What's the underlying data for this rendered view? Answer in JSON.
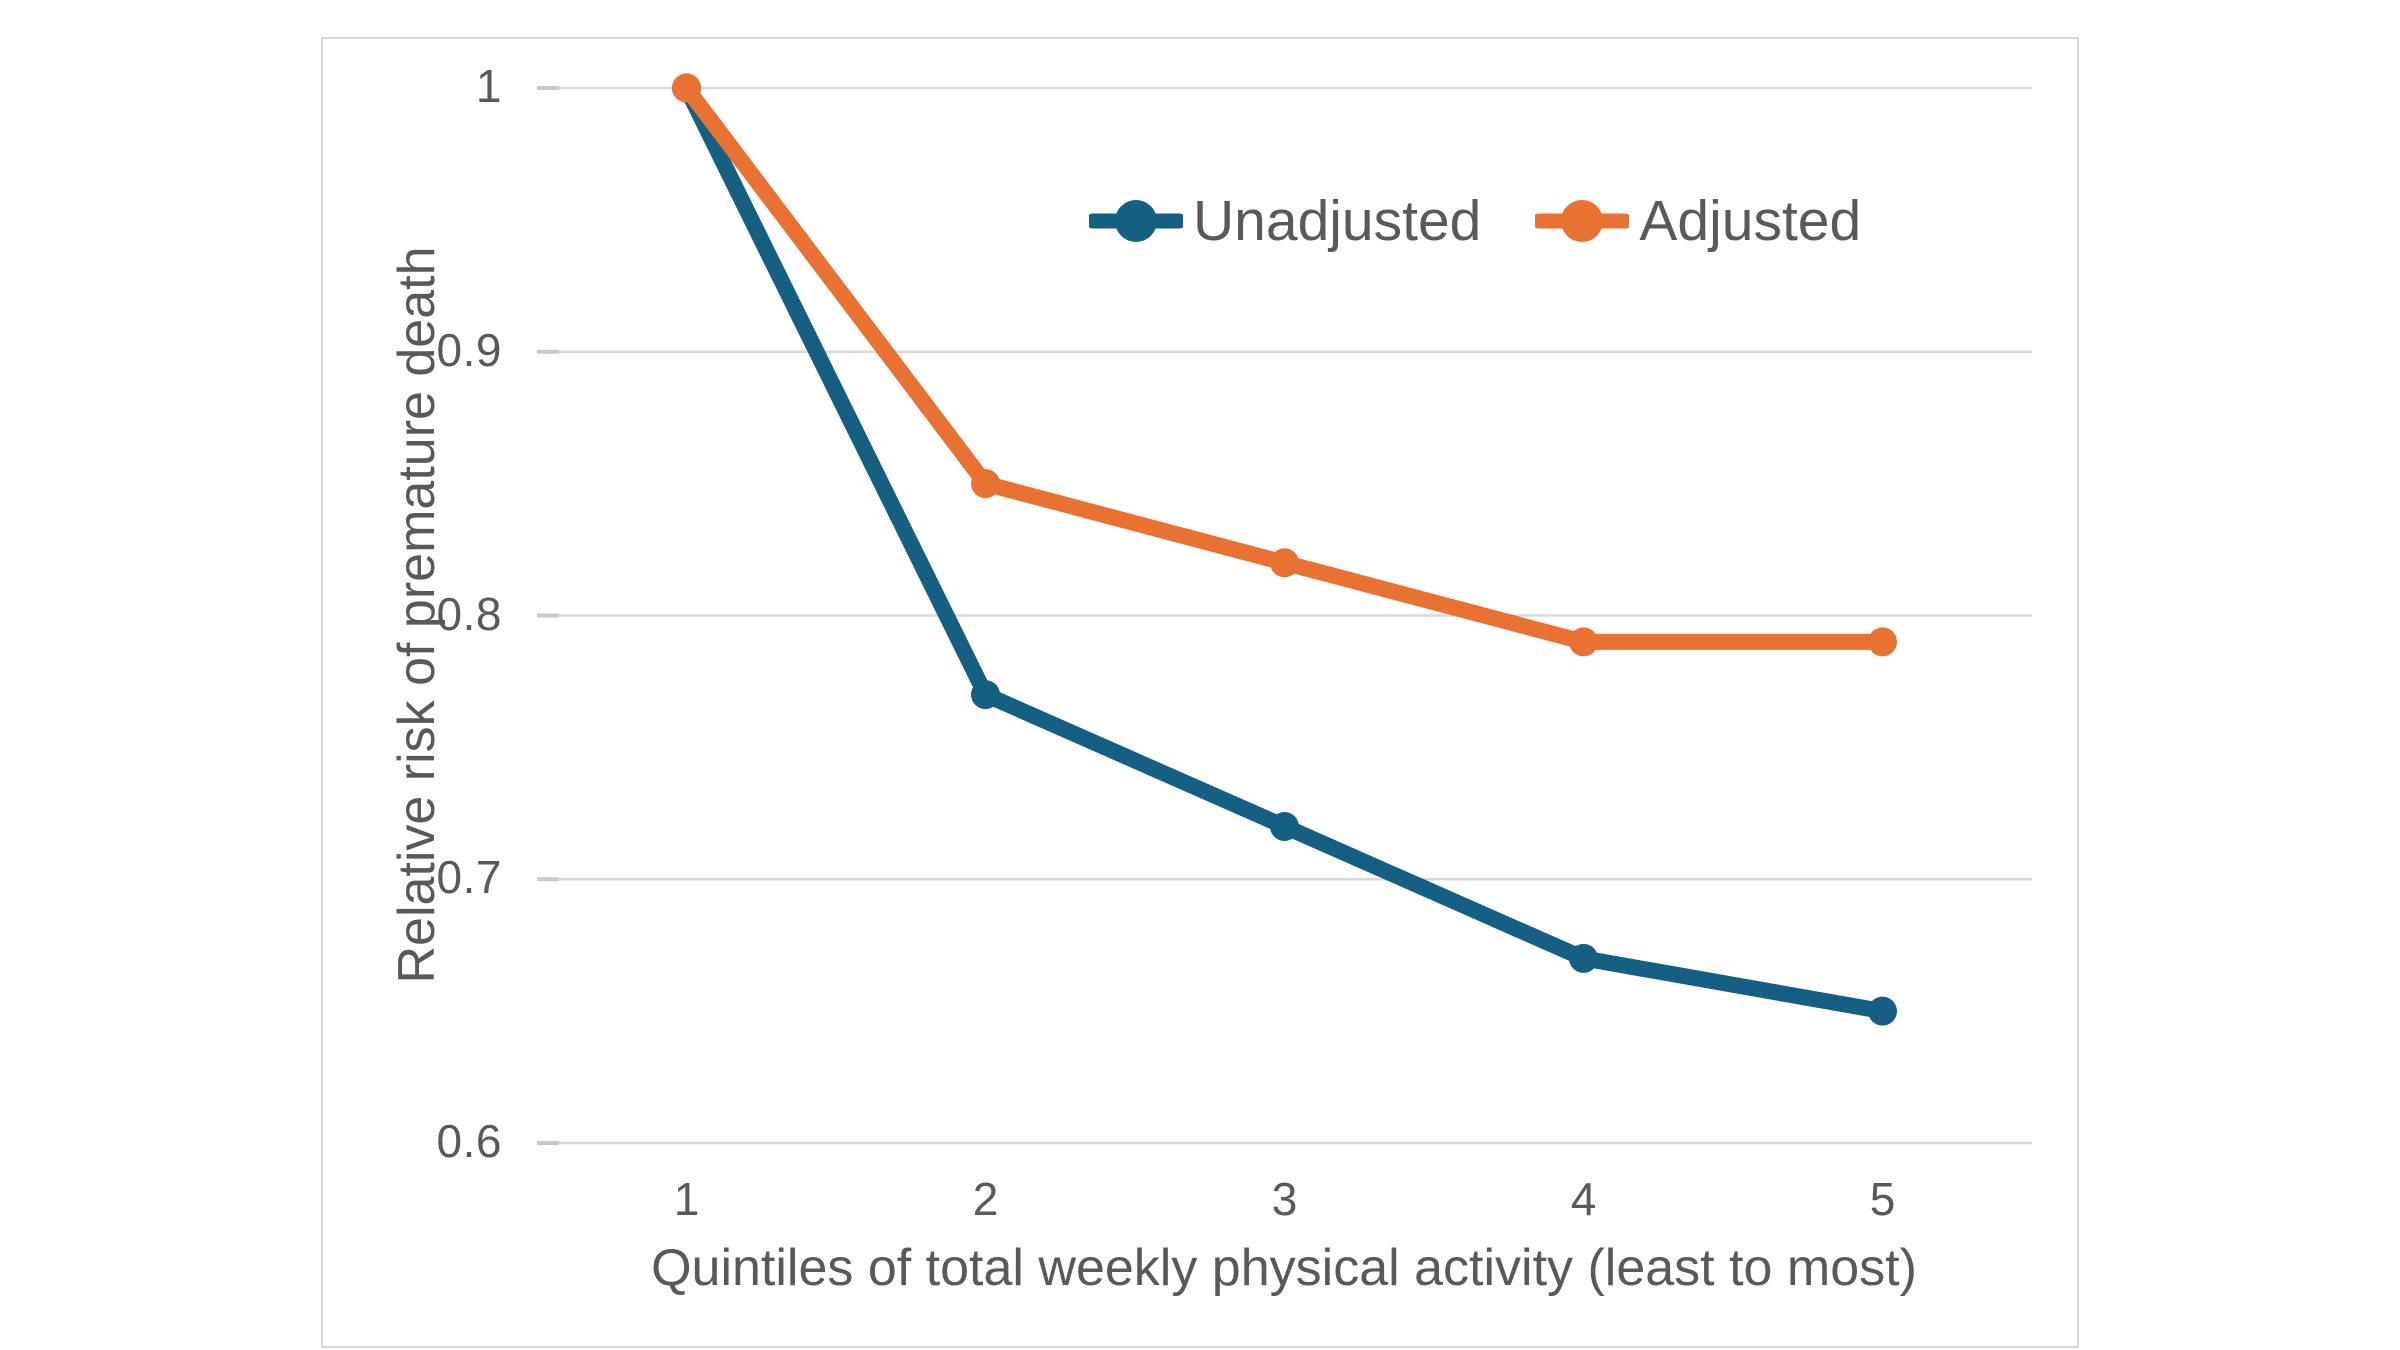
{
  "chart_data": {
    "type": "line",
    "title": "",
    "xlabel": "Quintiles of total weekly physical activity (least to most)",
    "ylabel": "Relative risk of premature death",
    "categories": [
      "1",
      "2",
      "3",
      "4",
      "5"
    ],
    "series": [
      {
        "name": "Unadjusted",
        "color": "#156082",
        "values": [
          1.0,
          0.77,
          0.72,
          0.67,
          0.65
        ]
      },
      {
        "name": "Adjusted",
        "color": "#E97132",
        "values": [
          1.0,
          0.85,
          0.82,
          0.79,
          0.79
        ]
      }
    ],
    "ylim": [
      0.6,
      1.0
    ],
    "yticks": [
      1,
      0.9,
      0.8,
      0.7,
      0.6
    ],
    "ytick_labels": [
      "1",
      "0.9",
      "0.8",
      "0.7",
      "0.6"
    ],
    "grid": true,
    "legend_position": "inside-top-right",
    "legend": [
      "Unadjusted",
      "Adjusted"
    ]
  },
  "colors": {
    "text": "#595959",
    "gridline": "#d9d9d9",
    "tick_mark": "#c9c9c9",
    "card_border": "#d9d9d9",
    "background": "#ffffff"
  }
}
